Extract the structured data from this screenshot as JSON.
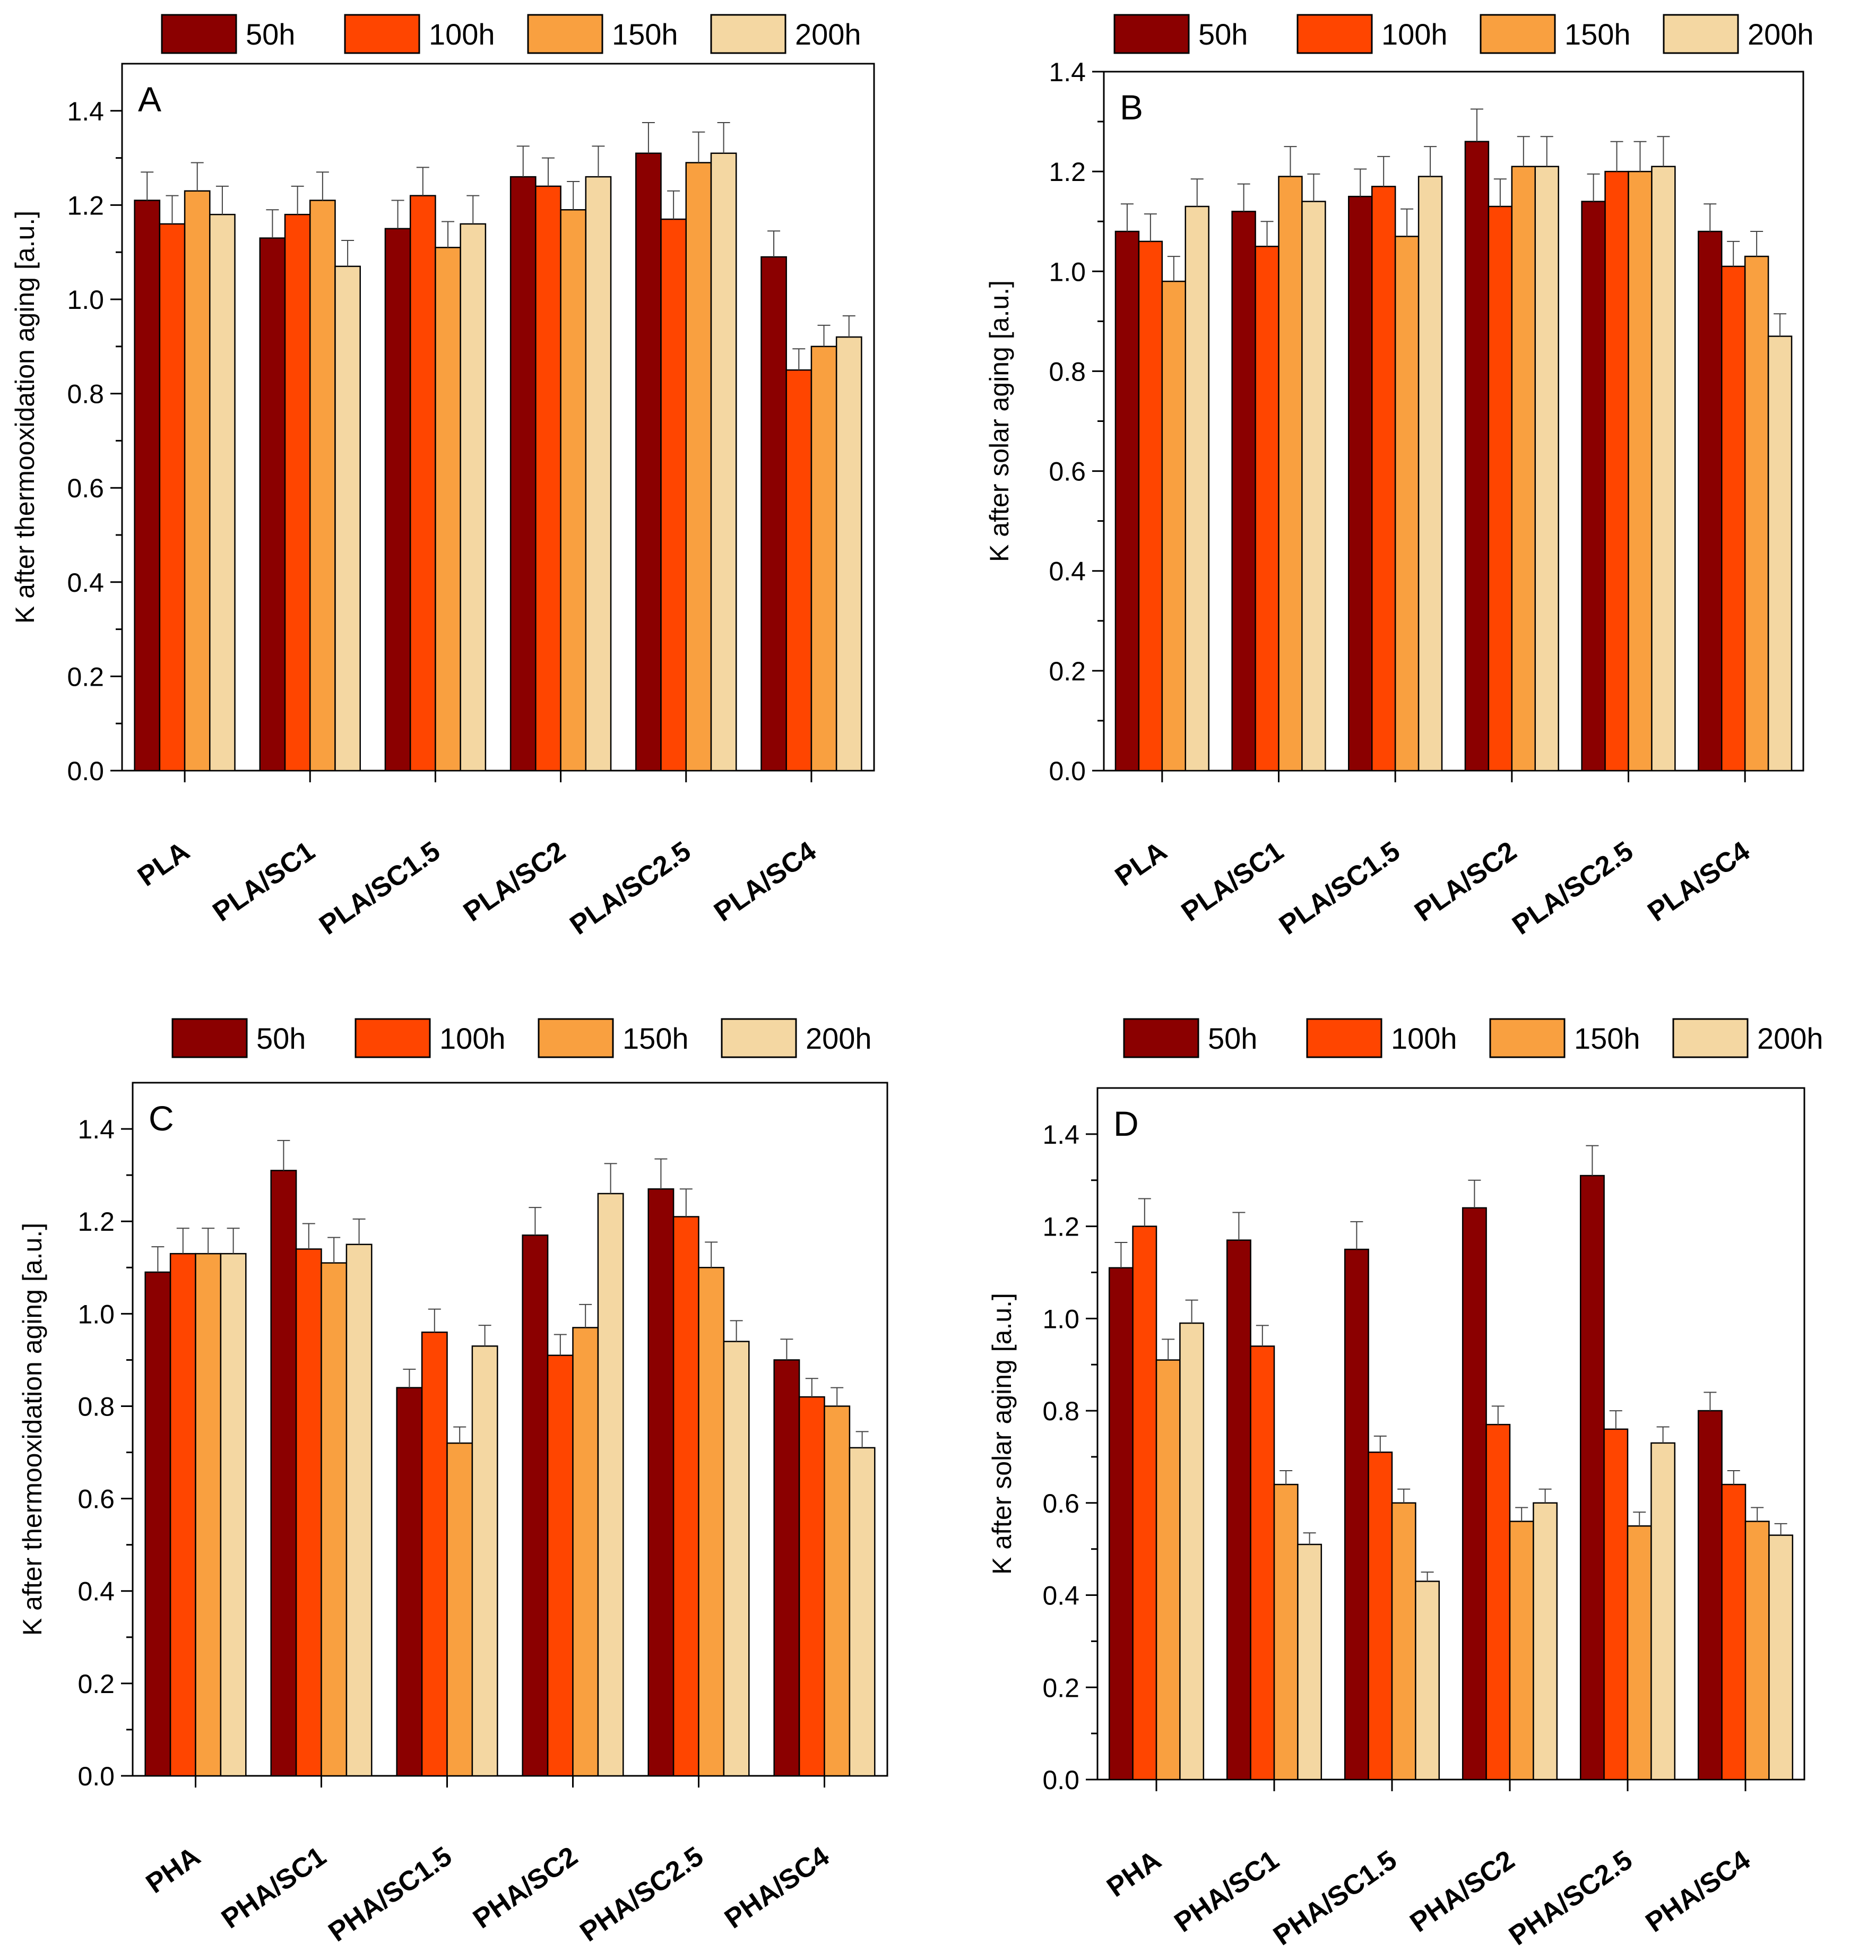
{
  "legend_labels": [
    "50h",
    "100h",
    "150h",
    "200h"
  ],
  "colors": [
    "#8B0000",
    "#FF4500",
    "#F9A040",
    "#F4D7A2"
  ],
  "chart_data": [
    {
      "type": "bar",
      "panel_label": "A",
      "ylabel": "K after thermooxidation aging [a.u.]",
      "ylim": [
        0,
        1.5
      ],
      "yticks": [
        "0.0",
        "0.2",
        "0.4",
        "0.6",
        "0.8",
        "1.0",
        "1.2",
        "1.4"
      ],
      "categories": [
        "PLA",
        "PLA/SC1",
        "PLA/SC1.5",
        "PLA/SC2",
        "PLA/SC2.5",
        "PLA/SC4"
      ],
      "series": [
        {
          "name": "50h",
          "values": [
            1.21,
            1.13,
            1.15,
            1.26,
            1.31,
            1.09
          ],
          "errors": [
            0.06,
            0.06,
            0.06,
            0.065,
            0.065,
            0.055
          ]
        },
        {
          "name": "100h",
          "values": [
            1.16,
            1.18,
            1.22,
            1.24,
            1.17,
            0.85
          ],
          "errors": [
            0.06,
            0.06,
            0.06,
            0.06,
            0.06,
            0.045
          ]
        },
        {
          "name": "150h",
          "values": [
            1.23,
            1.21,
            1.11,
            1.19,
            1.29,
            0.9
          ],
          "errors": [
            0.06,
            0.06,
            0.055,
            0.06,
            0.065,
            0.045
          ]
        },
        {
          "name": "200h",
          "values": [
            1.18,
            1.07,
            1.16,
            1.26,
            1.31,
            0.92
          ],
          "errors": [
            0.06,
            0.055,
            0.06,
            0.065,
            0.065,
            0.045
          ]
        }
      ],
      "legend_position": "top"
    },
    {
      "type": "bar",
      "panel_label": "B",
      "ylabel": "K after solar aging [a.u.]",
      "ylim": [
        0,
        1.4
      ],
      "yticks": [
        "0.0",
        "0.2",
        "0.4",
        "0.6",
        "0.8",
        "1.0",
        "1.2",
        "1.4"
      ],
      "categories": [
        "PLA",
        "PLA/SC1",
        "PLA/SC1.5",
        "PLA/SC2",
        "PLA/SC2.5",
        "PLA/SC4"
      ],
      "series": [
        {
          "name": "50h",
          "values": [
            1.08,
            1.12,
            1.15,
            1.26,
            1.14,
            1.08
          ],
          "errors": [
            0.055,
            0.055,
            0.055,
            0.065,
            0.055,
            0.055
          ]
        },
        {
          "name": "100h",
          "values": [
            1.06,
            1.05,
            1.17,
            1.13,
            1.2,
            1.01
          ],
          "errors": [
            0.055,
            0.05,
            0.06,
            0.055,
            0.06,
            0.05
          ]
        },
        {
          "name": "150h",
          "values": [
            0.98,
            1.19,
            1.07,
            1.21,
            1.2,
            1.03
          ],
          "errors": [
            0.05,
            0.06,
            0.055,
            0.06,
            0.06,
            0.05
          ]
        },
        {
          "name": "200h",
          "values": [
            1.13,
            1.14,
            1.19,
            1.21,
            1.21,
            0.87
          ],
          "errors": [
            0.055,
            0.055,
            0.06,
            0.06,
            0.06,
            0.045
          ]
        }
      ],
      "legend_position": "top"
    },
    {
      "type": "bar",
      "panel_label": "C",
      "ylabel": "K after thermooxidation aging [a.u.]",
      "ylim": [
        0,
        1.5
      ],
      "yticks": [
        "0.0",
        "0.2",
        "0.4",
        "0.6",
        "0.8",
        "1.0",
        "1.2",
        "1.4"
      ],
      "categories": [
        "PHA",
        "PHA/SC1",
        "PHA/SC1.5",
        "PHA/SC2",
        "PHA/SC2.5",
        "PHA/SC4"
      ],
      "series": [
        {
          "name": "50h",
          "values": [
            1.09,
            1.31,
            0.84,
            1.17,
            1.27,
            0.9
          ],
          "errors": [
            0.055,
            0.065,
            0.04,
            0.06,
            0.065,
            0.045
          ]
        },
        {
          "name": "100h",
          "values": [
            1.13,
            1.14,
            0.96,
            0.91,
            1.21,
            0.82
          ],
          "errors": [
            0.055,
            0.055,
            0.05,
            0.045,
            0.06,
            0.04
          ]
        },
        {
          "name": "150h",
          "values": [
            1.13,
            1.11,
            0.72,
            0.97,
            1.1,
            0.8
          ],
          "errors": [
            0.055,
            0.055,
            0.035,
            0.05,
            0.055,
            0.04
          ]
        },
        {
          "name": "200h",
          "values": [
            1.13,
            1.15,
            0.93,
            1.26,
            0.94,
            0.71
          ],
          "errors": [
            0.055,
            0.055,
            0.045,
            0.065,
            0.045,
            0.035
          ]
        }
      ],
      "legend_position": "top"
    },
    {
      "type": "bar",
      "panel_label": "D",
      "ylabel": "K after solar aging [a.u.]",
      "ylim": [
        0,
        1.5
      ],
      "yticks": [
        "0.0",
        "0.2",
        "0.4",
        "0.6",
        "0.8",
        "1.0",
        "1.2",
        "1.4"
      ],
      "categories": [
        "PHA",
        "PHA/SC1",
        "PHA/SC1.5",
        "PHA/SC2",
        "PHA/SC2.5",
        "PHA/SC4"
      ],
      "series": [
        {
          "name": "50h",
          "values": [
            1.11,
            1.17,
            1.15,
            1.24,
            1.31,
            0.8
          ],
          "errors": [
            0.055,
            0.06,
            0.06,
            0.06,
            0.065,
            0.04
          ]
        },
        {
          "name": "100h",
          "values": [
            1.2,
            0.94,
            0.71,
            0.77,
            0.76,
            0.64
          ],
          "errors": [
            0.06,
            0.045,
            0.035,
            0.04,
            0.04,
            0.03
          ]
        },
        {
          "name": "150h",
          "values": [
            0.91,
            0.64,
            0.6,
            0.56,
            0.55,
            0.56
          ],
          "errors": [
            0.045,
            0.03,
            0.03,
            0.03,
            0.03,
            0.03
          ]
        },
        {
          "name": "200h",
          "values": [
            0.99,
            0.51,
            0.43,
            0.6,
            0.73,
            0.53
          ],
          "errors": [
            0.05,
            0.025,
            0.02,
            0.03,
            0.035,
            0.025
          ]
        }
      ],
      "legend_position": "top"
    }
  ]
}
